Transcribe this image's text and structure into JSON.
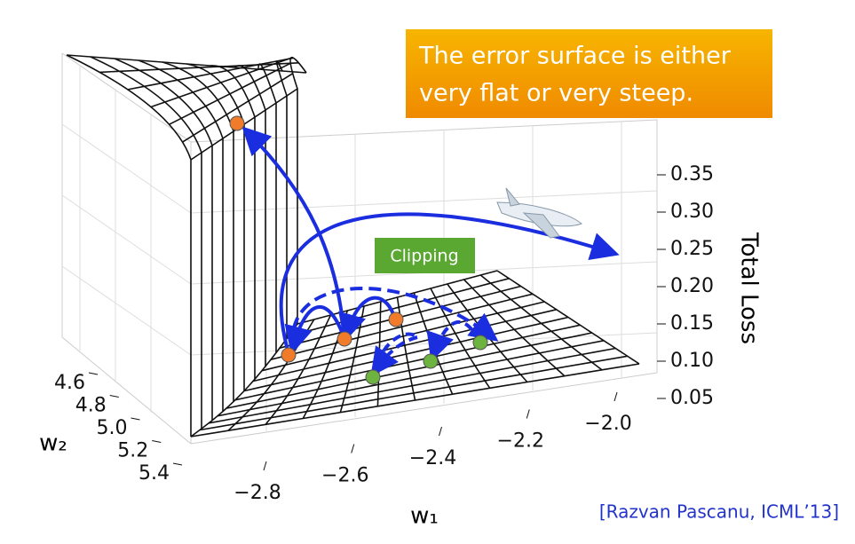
{
  "chart_data": {
    "type": "surface3d",
    "callout": [
      "The error surface is either",
      "very flat or very steep."
    ],
    "annotation": "Clipping",
    "citation": "[Razvan Pascanu, ICML’13]",
    "xlabel": "w₁",
    "ylabel": "w₂",
    "zlabel": "Total Loss",
    "xlim": [
      -2.8,
      -2.0
    ],
    "xticks": [
      {
        "value": -2.8,
        "label": "−2.8"
      },
      {
        "value": -2.6,
        "label": "−2.6"
      },
      {
        "value": -2.4,
        "label": "−2.4"
      },
      {
        "value": -2.2,
        "label": "−2.2"
      },
      {
        "value": -2.0,
        "label": "−2.0"
      }
    ],
    "ylim": [
      4.6,
      5.4
    ],
    "yticks": [
      4.6,
      4.8,
      {
        "value": 5.0,
        "label": "5.0"
      },
      5.2,
      5.4
    ],
    "zlim": [
      0.05,
      0.35
    ],
    "zticks": [
      0.05,
      {
        "value": 0.1,
        "label": "0.10"
      },
      0.15,
      {
        "value": 0.2,
        "label": "0.20"
      },
      0.25,
      {
        "value": 0.3,
        "label": "0.30"
      },
      0.35
    ]
  }
}
